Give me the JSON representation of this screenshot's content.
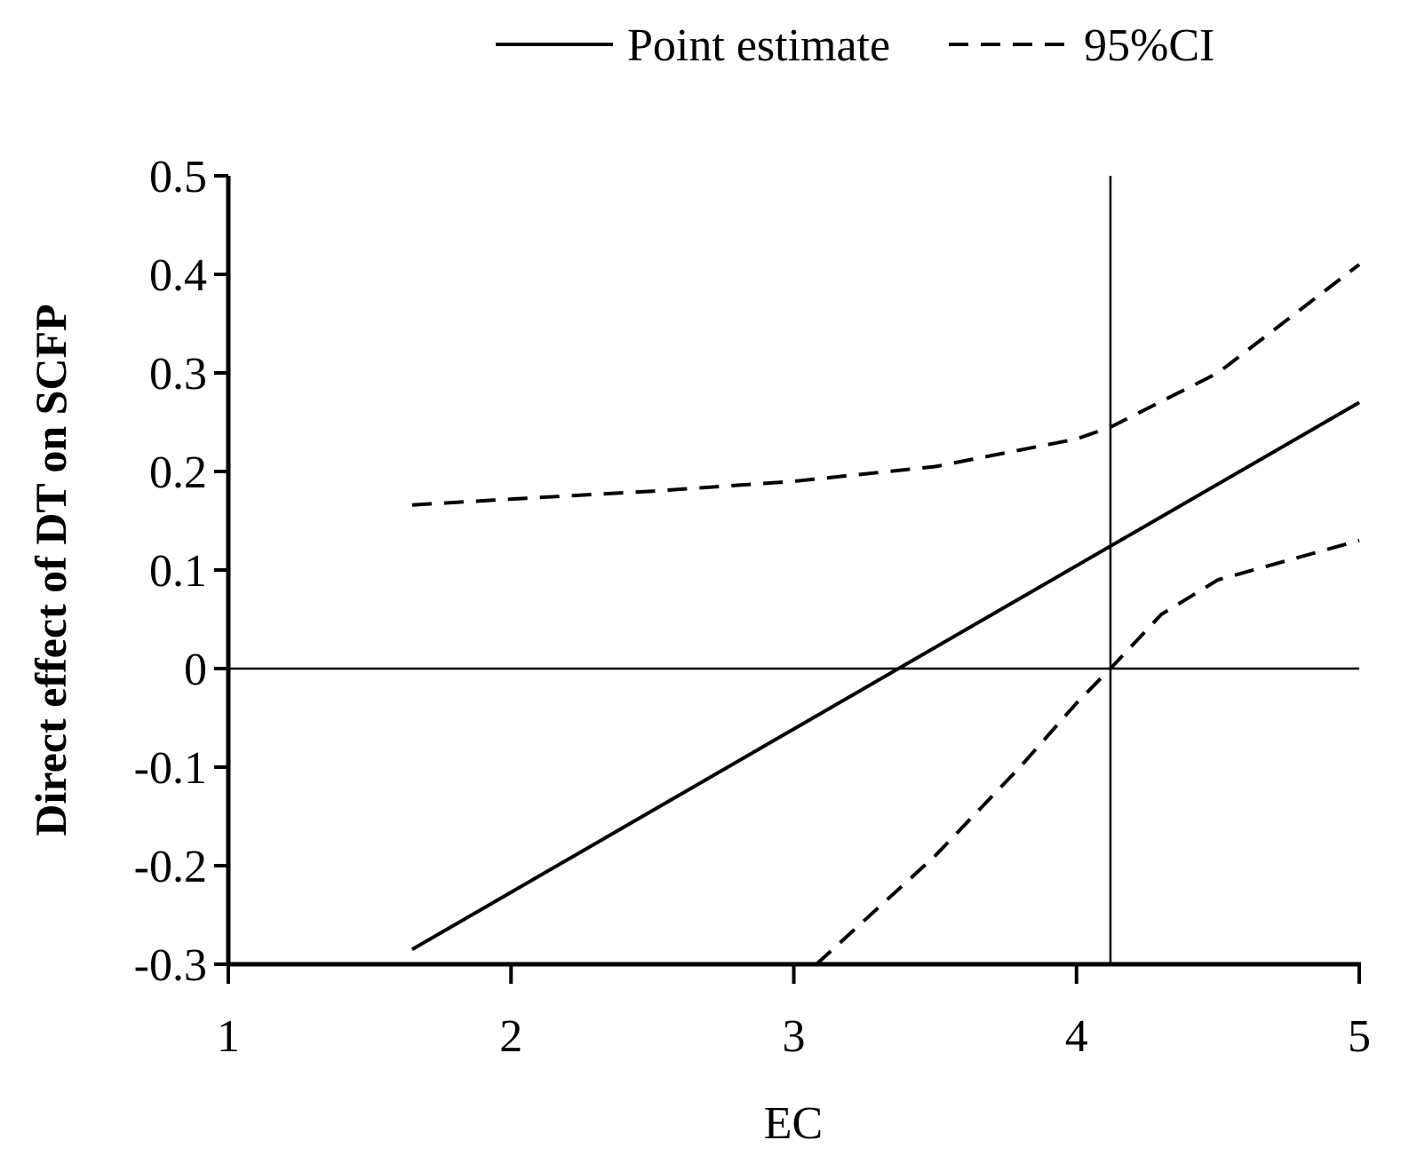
{
  "chart_data": {
    "type": "line",
    "title": "",
    "xlabel": "EC",
    "ylabel": "Direct effect of DT on SCFP",
    "xlim": [
      1,
      5
    ],
    "ylim": [
      -0.3,
      0.5
    ],
    "x_ticks": [
      {
        "value": 1,
        "label": "1"
      },
      {
        "value": 2,
        "label": "2"
      },
      {
        "value": 3,
        "label": "3"
      },
      {
        "value": 4,
        "label": "4"
      },
      {
        "value": 5,
        "label": "5"
      }
    ],
    "y_ticks": [
      {
        "value": 0.5,
        "label": "0.5"
      },
      {
        "value": 0.4,
        "label": "0.4"
      },
      {
        "value": 0.3,
        "label": "0.3"
      },
      {
        "value": 0.2,
        "label": "0.2"
      },
      {
        "value": 0.1,
        "label": "0.1"
      },
      {
        "value": 0.0,
        "label": "0"
      },
      {
        "value": -0.1,
        "label": "-0.1"
      },
      {
        "value": -0.2,
        "label": "-0.2"
      },
      {
        "value": -0.3,
        "label": "-0.3"
      }
    ],
    "grid": false,
    "legend": {
      "position": "top",
      "entries": [
        {
          "label": "Point estimate",
          "style": "solid"
        },
        {
          "label": "95%CI",
          "style": "dashed"
        }
      ]
    },
    "reference_lines": {
      "horizontal_y": 0,
      "vertical_x": 4.12
    },
    "series": [
      {
        "name": "Point estimate",
        "style": "solid",
        "x": [
          1.65,
          5.0
        ],
        "y": [
          -0.285,
          0.27
        ]
      },
      {
        "name": "95%CI",
        "role": "upper",
        "style": "dashed",
        "x": [
          1.65,
          2.0,
          2.5,
          3.0,
          3.5,
          4.0,
          4.12,
          4.5,
          5.0
        ],
        "y": [
          0.166,
          0.172,
          0.18,
          0.19,
          0.205,
          0.233,
          0.245,
          0.3,
          0.41
        ]
      },
      {
        "name": "95%CI",
        "role": "lower",
        "style": "dashed",
        "x": [
          3.08,
          3.5,
          3.8,
          4.0,
          4.12,
          4.3,
          4.5,
          5.0
        ],
        "y": [
          -0.3,
          -0.19,
          -0.1,
          -0.035,
          0.0,
          0.055,
          0.09,
          0.13
        ]
      }
    ]
  }
}
